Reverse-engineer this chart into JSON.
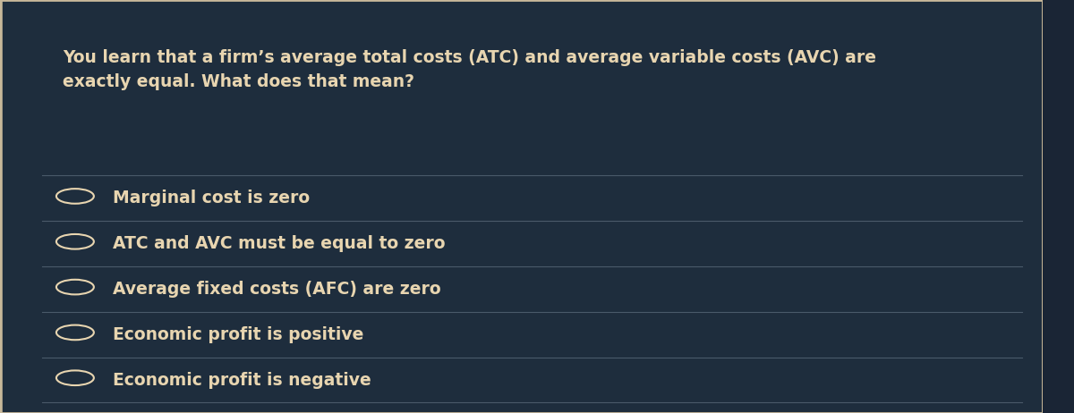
{
  "background_color": "#1a2535",
  "panel_color": "#1e2d3d",
  "border_color": "#c8b89a",
  "text_color": "#e8d5b0",
  "divider_color": "#4a5a6a",
  "question": "You learn that a firm’s average total costs (ATC) and average variable costs (AVC) are\nexactly equal. What does that mean?",
  "options": [
    "Marginal cost is zero",
    "ATC and AVC must be equal to zero",
    "Average fixed costs (AFC) are zero",
    "Economic profit is positive",
    "Economic profit is negative"
  ],
  "question_fontsize": 13.5,
  "option_fontsize": 13.5,
  "figsize": [
    12.0,
    4.62
  ],
  "dpi": 100
}
